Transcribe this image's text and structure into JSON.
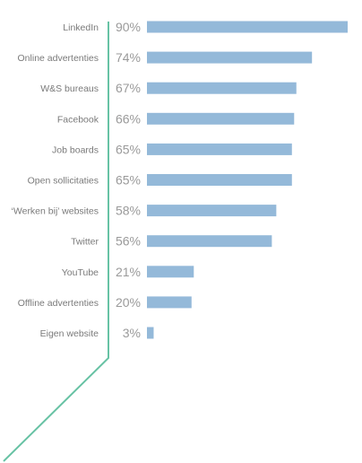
{
  "chart_data": {
    "type": "bar",
    "orientation": "horizontal",
    "categories": [
      "LinkedIn",
      "Online advertenties",
      "W&S bureaus",
      "Facebook",
      "Job boards",
      "Open sollicitaties",
      "‘Werken bij’ websites",
      "Twitter",
      "YouTube",
      "Offline advertenties",
      "Eigen website"
    ],
    "values": [
      90,
      74,
      67,
      66,
      65,
      65,
      58,
      56,
      21,
      20,
      3
    ],
    "value_labels": [
      "90%",
      "74%",
      "67%",
      "66%",
      "65%",
      "65%",
      "58%",
      "56%",
      "21%",
      "20%",
      "3%"
    ],
    "xlim": [
      0,
      90
    ],
    "unit": "%",
    "grid": false,
    "legend": "none",
    "colors": {
      "bar": "#94b9d9",
      "axis_line": "#67c2a4",
      "category_text": "#7a7a7a",
      "value_text": "#9a9a9a"
    }
  }
}
